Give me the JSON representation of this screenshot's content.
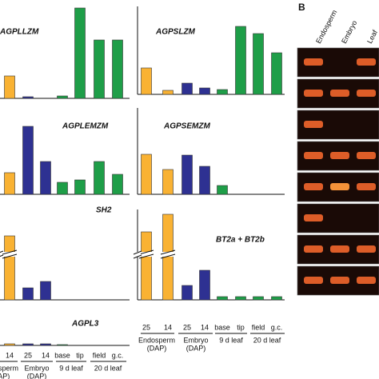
{
  "panel_b": {
    "label": "B",
    "lanes": [
      "Endosperm",
      "Embryo",
      "Leaf"
    ]
  },
  "chart_data": [
    {
      "type": "bar",
      "title": "AGPLLZM",
      "ylim": [
        0,
        110
      ],
      "values": [
        28,
        2,
        0,
        3,
        113,
        73,
        73
      ],
      "colors": [
        "#f9b233",
        "#2e3192",
        "#2e3192",
        "#1e9e48",
        "#1e9e48",
        "#1e9e48",
        "#1e9e48"
      ]
    },
    {
      "type": "bar",
      "title": "AGPLEMZM",
      "ylim": [
        0,
        110
      ],
      "values": [
        27,
        85,
        41,
        15,
        18,
        41,
        25
      ],
      "colors": [
        "#f9b233",
        "#2e3192",
        "#2e3192",
        "#1e9e48",
        "#1e9e48",
        "#1e9e48",
        "#1e9e48"
      ]
    },
    {
      "type": "bar",
      "title": "SH2",
      "ylim": [
        0,
        110
      ],
      "values": [
        80,
        15,
        23,
        0,
        0,
        0,
        0
      ],
      "colors": [
        "#f9b233",
        "#2e3192",
        "#2e3192",
        "#1e9e48",
        "#1e9e48",
        "#1e9e48",
        "#1e9e48"
      ]
    },
    {
      "type": "bar",
      "title": "AGPL3",
      "ylim": [
        0,
        110
      ],
      "values": [
        2,
        2,
        2,
        1,
        0,
        0,
        0
      ],
      "colors": [
        "#f9b233",
        "#2e3192",
        "#2e3192",
        "#1e9e48",
        "#1e9e48",
        "#1e9e48",
        "#1e9e48"
      ],
      "categories": [
        "14",
        "25",
        "14",
        "base",
        "tip",
        "field",
        "g.c."
      ],
      "groups": [
        {
          "label": [
            "Endosperm",
            "(DAP)"
          ]
        },
        {
          "label": [
            "Embryo",
            "(DAP)"
          ]
        },
        {
          "label": [
            "9 d leaf"
          ]
        },
        {
          "label": [
            "20 d leaf"
          ]
        }
      ]
    },
    {
      "type": "bar",
      "title": "AGPSLZM",
      "ylim": [
        0,
        110
      ],
      "values": [
        33,
        5,
        14,
        8,
        6,
        85,
        76,
        52
      ],
      "colors": [
        "#f9b233",
        "#f9b233",
        "#2e3192",
        "#2e3192",
        "#1e9e48",
        "#1e9e48",
        "#1e9e48",
        "#1e9e48"
      ]
    },
    {
      "type": "bar",
      "title": "AGPSEMZM",
      "ylim": [
        0,
        110
      ],
      "values": [
        50,
        31,
        49,
        35,
        11,
        0,
        0,
        0
      ],
      "colors": [
        "#f9b233",
        "#f9b233",
        "#2e3192",
        "#2e3192",
        "#1e9e48",
        "#1e9e48",
        "#1e9e48",
        "#1e9e48"
      ]
    },
    {
      "type": "bar",
      "title": "BT2a + BT2b",
      "ylim": [
        0,
        110
      ],
      "values": [
        85,
        107,
        18,
        37,
        4,
        4,
        4,
        4
      ],
      "colors": [
        "#f9b233",
        "#f9b233",
        "#2e3192",
        "#2e3192",
        "#1e9e48",
        "#1e9e48",
        "#1e9e48",
        "#1e9e48"
      ],
      "categories": [
        "25",
        "14",
        "25",
        "14",
        "base",
        "tip",
        "field",
        "g.c."
      ],
      "groups": [
        {
          "label": [
            "Endosperm",
            "(DAP)"
          ]
        },
        {
          "label": [
            "Embryo",
            "(DAP)"
          ]
        },
        {
          "label": [
            "9 d leaf"
          ]
        },
        {
          "label": [
            "20 d leaf"
          ]
        }
      ]
    }
  ]
}
